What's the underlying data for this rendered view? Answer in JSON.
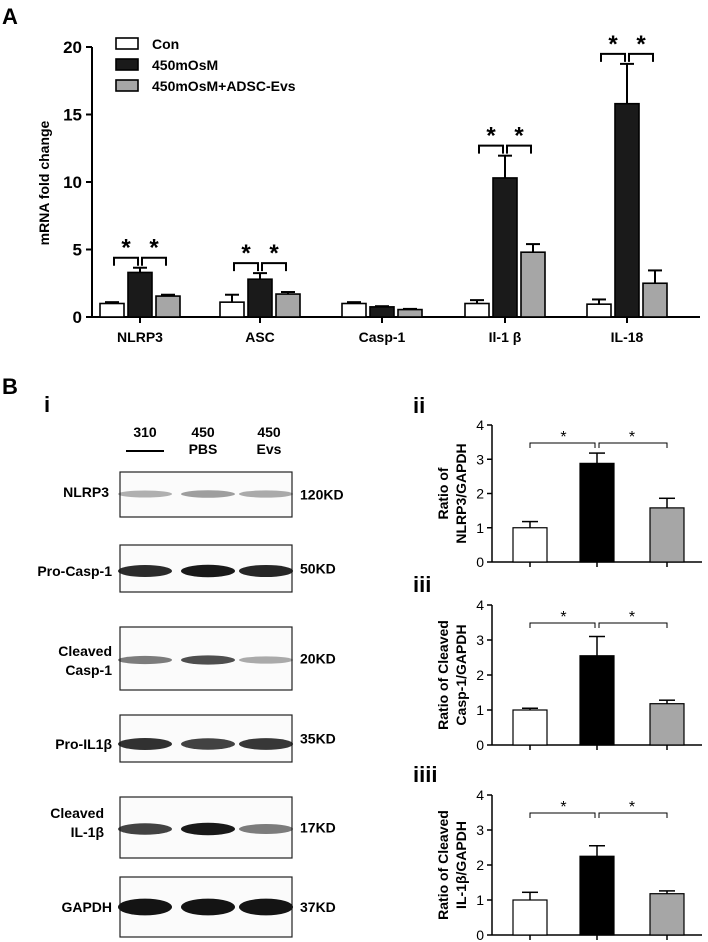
{
  "panelA": {
    "label": "A",
    "chart_data": {
      "type": "bar",
      "ylabel": "mRNA fold change",
      "ylim": [
        0,
        20
      ],
      "yticks": [
        0,
        5,
        10,
        15,
        20
      ],
      "categories": [
        "NLRP3",
        "ASC",
        "Casp-1",
        "Il-1 β",
        "IL-18"
      ],
      "series": [
        {
          "name": "Con",
          "color": "#ffffff",
          "values": [
            1.0,
            1.1,
            1.0,
            1.0,
            0.95
          ],
          "errors": [
            0.1,
            0.55,
            0.1,
            0.25,
            0.35
          ]
        },
        {
          "name": "450mOsM",
          "color": "#1a1a1a",
          "values": [
            3.3,
            2.8,
            0.75,
            10.3,
            15.8
          ],
          "errors": [
            0.35,
            0.45,
            0.05,
            1.65,
            2.95
          ]
        },
        {
          "name": "450mOsM+ADSC-Evs",
          "color": "#a6a6a6",
          "values": [
            1.55,
            1.7,
            0.55,
            4.8,
            2.5
          ],
          "errors": [
            0.1,
            0.15,
            0.05,
            0.6,
            0.95
          ]
        }
      ],
      "significance_marker": "*"
    }
  },
  "panelB": {
    "label": "B",
    "sub_i": "i",
    "lane_headers": [
      {
        "top": "310",
        "bottom": "—"
      },
      {
        "top": "450",
        "bottom": "PBS"
      },
      {
        "top": "450",
        "bottom": "Evs"
      }
    ],
    "blots": [
      {
        "label": "NLRP3",
        "size": "120KD"
      },
      {
        "label": "Pro-Casp-1",
        "size": "50KD"
      },
      {
        "label": "Cleaved Casp-1",
        "size": "20KD"
      },
      {
        "label": "Pro-IL1β",
        "size": "35KD"
      },
      {
        "label": "Cleaved IL-1β",
        "size": "17KD"
      },
      {
        "label": "GAPDH",
        "size": "37KD"
      }
    ],
    "chart_data": [
      {
        "type": "bar",
        "panel": "ii",
        "ylabel": "Ratio of NLRP3/GAPDH",
        "ylim": [
          0,
          4
        ],
        "yticks": [
          0,
          1,
          2,
          3,
          4
        ],
        "values": [
          1.0,
          2.88,
          1.58
        ],
        "errors": [
          0.18,
          0.3,
          0.28
        ],
        "colors": [
          "#ffffff",
          "#000000",
          "#a6a6a6"
        ],
        "significance_marker": "*"
      },
      {
        "type": "bar",
        "panel": "iii",
        "ylabel": "Ratio of Cleaved Casp-1/GAPDH",
        "ylim": [
          0,
          4
        ],
        "yticks": [
          0,
          1,
          2,
          3,
          4
        ],
        "values": [
          1.0,
          2.55,
          1.18
        ],
        "errors": [
          0.05,
          0.55,
          0.1
        ],
        "colors": [
          "#ffffff",
          "#000000",
          "#a6a6a6"
        ],
        "significance_marker": "*"
      },
      {
        "type": "bar",
        "panel": "iiii",
        "ylabel": "Ratio of Cleaved IL-1β/GAPDH",
        "ylim": [
          0,
          4
        ],
        "yticks": [
          0,
          1,
          2,
          3,
          4
        ],
        "values": [
          1.0,
          2.25,
          1.18
        ],
        "errors": [
          0.22,
          0.3,
          0.08
        ],
        "colors": [
          "#ffffff",
          "#000000",
          "#a6a6a6"
        ],
        "significance_marker": "*"
      }
    ]
  }
}
